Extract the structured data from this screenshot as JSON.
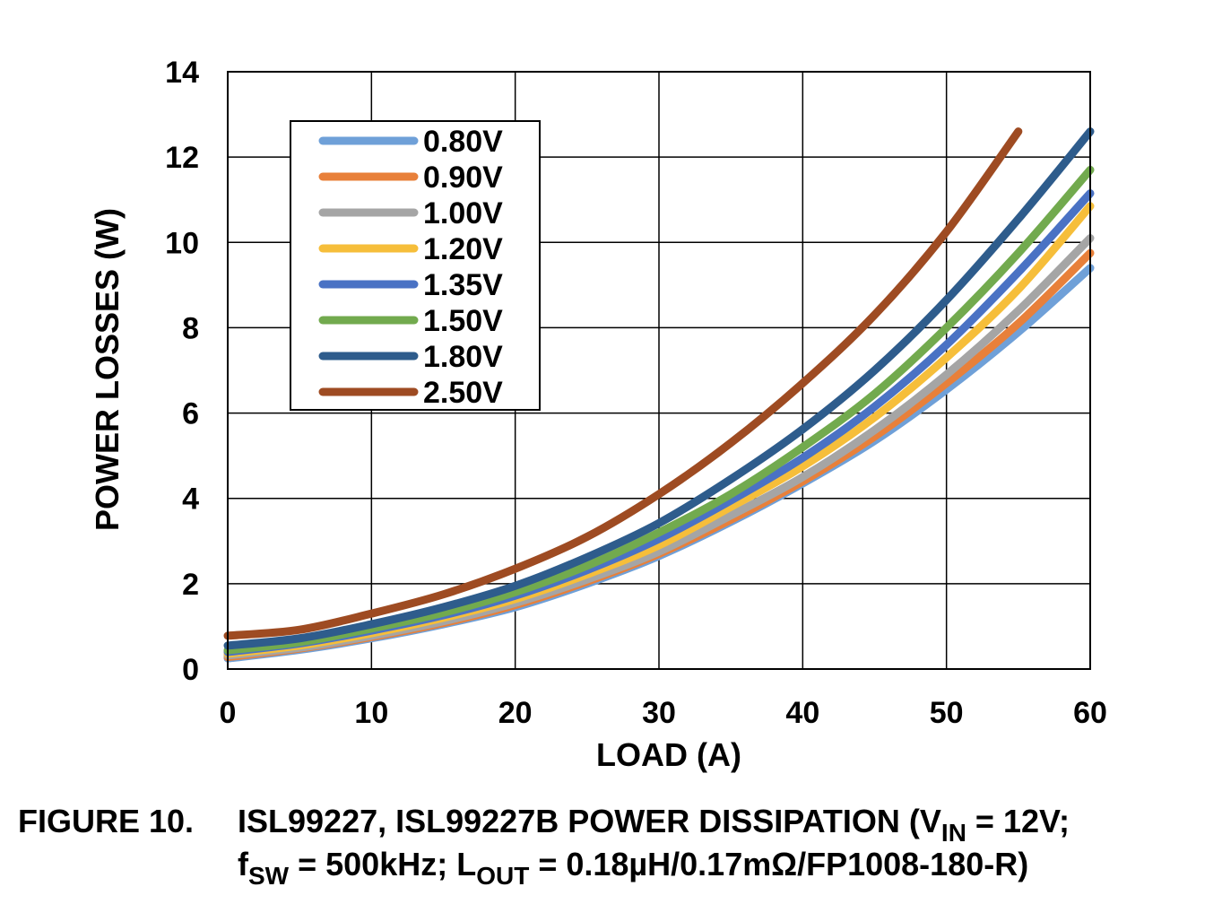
{
  "chart_data": {
    "type": "line",
    "xlabel": "LOAD (A)",
    "ylabel": "POWER LOSSES (W)",
    "xlim": [
      0,
      60
    ],
    "ylim": [
      0,
      14
    ],
    "xticks": [
      "0",
      "10",
      "20",
      "30",
      "40",
      "50",
      "60"
    ],
    "yticks": [
      "0",
      "2",
      "4",
      "6",
      "8",
      "10",
      "12",
      "14"
    ],
    "grid": true,
    "legend_position": "top-left",
    "x": [
      0,
      5,
      10,
      15,
      20,
      25,
      30,
      35,
      40,
      45,
      50,
      55,
      60
    ],
    "series": [
      {
        "name": "0.80V",
        "color": "#6FA0D8",
        "values": [
          0.25,
          0.45,
          0.72,
          1.05,
          1.45,
          2.0,
          2.65,
          3.45,
          4.35,
          5.35,
          6.55,
          7.9,
          9.4
        ]
      },
      {
        "name": "0.90V",
        "color": "#E8803A",
        "values": [
          0.28,
          0.48,
          0.75,
          1.08,
          1.5,
          2.05,
          2.7,
          3.5,
          4.4,
          5.45,
          6.7,
          8.1,
          9.75
        ]
      },
      {
        "name": "1.00V",
        "color": "#A5A5A5",
        "values": [
          0.32,
          0.5,
          0.78,
          1.12,
          1.55,
          2.1,
          2.75,
          3.6,
          4.5,
          5.6,
          6.9,
          8.4,
          10.1
        ]
      },
      {
        "name": "1.20V",
        "color": "#F6BE3A",
        "values": [
          0.36,
          0.55,
          0.84,
          1.2,
          1.64,
          2.22,
          2.9,
          3.8,
          4.75,
          5.9,
          7.3,
          8.9,
          10.85
        ]
      },
      {
        "name": "1.35V",
        "color": "#4A72C4",
        "values": [
          0.4,
          0.6,
          0.9,
          1.26,
          1.72,
          2.32,
          3.05,
          3.95,
          4.95,
          6.15,
          7.6,
          9.3,
          11.15
        ]
      },
      {
        "name": "1.50V",
        "color": "#72AA4E",
        "values": [
          0.44,
          0.63,
          0.95,
          1.32,
          1.8,
          2.42,
          3.2,
          4.1,
          5.2,
          6.45,
          8.0,
          9.75,
          11.7
        ]
      },
      {
        "name": "1.80V",
        "color": "#2E5C8C",
        "values": [
          0.55,
          0.72,
          1.05,
          1.45,
          1.95,
          2.62,
          3.42,
          4.45,
          5.62,
          7.0,
          8.65,
          10.55,
          12.6
        ]
      },
      {
        "name": "2.50V",
        "color": "#9E4B22",
        "x": [
          0,
          5,
          10,
          15,
          20,
          25,
          30,
          35,
          40,
          45,
          50,
          55
        ],
        "values": [
          0.78,
          0.92,
          1.3,
          1.75,
          2.35,
          3.1,
          4.1,
          5.3,
          6.7,
          8.3,
          10.25,
          12.6
        ]
      }
    ]
  },
  "caption": {
    "label": "FIGURE 10.",
    "line1_text": "ISL99227, ISL99227B POWER DISSIPATION (V",
    "vin_sub": "IN",
    "line1_end": " = 12V;",
    "f_text": "f",
    "fsw_sub": "SW",
    "line2_mid": " = 500kHz; L",
    "lout_sub": "OUT",
    "line2_end": " = 0.18µH/0.17mΩ/FP1008-180-R)"
  }
}
